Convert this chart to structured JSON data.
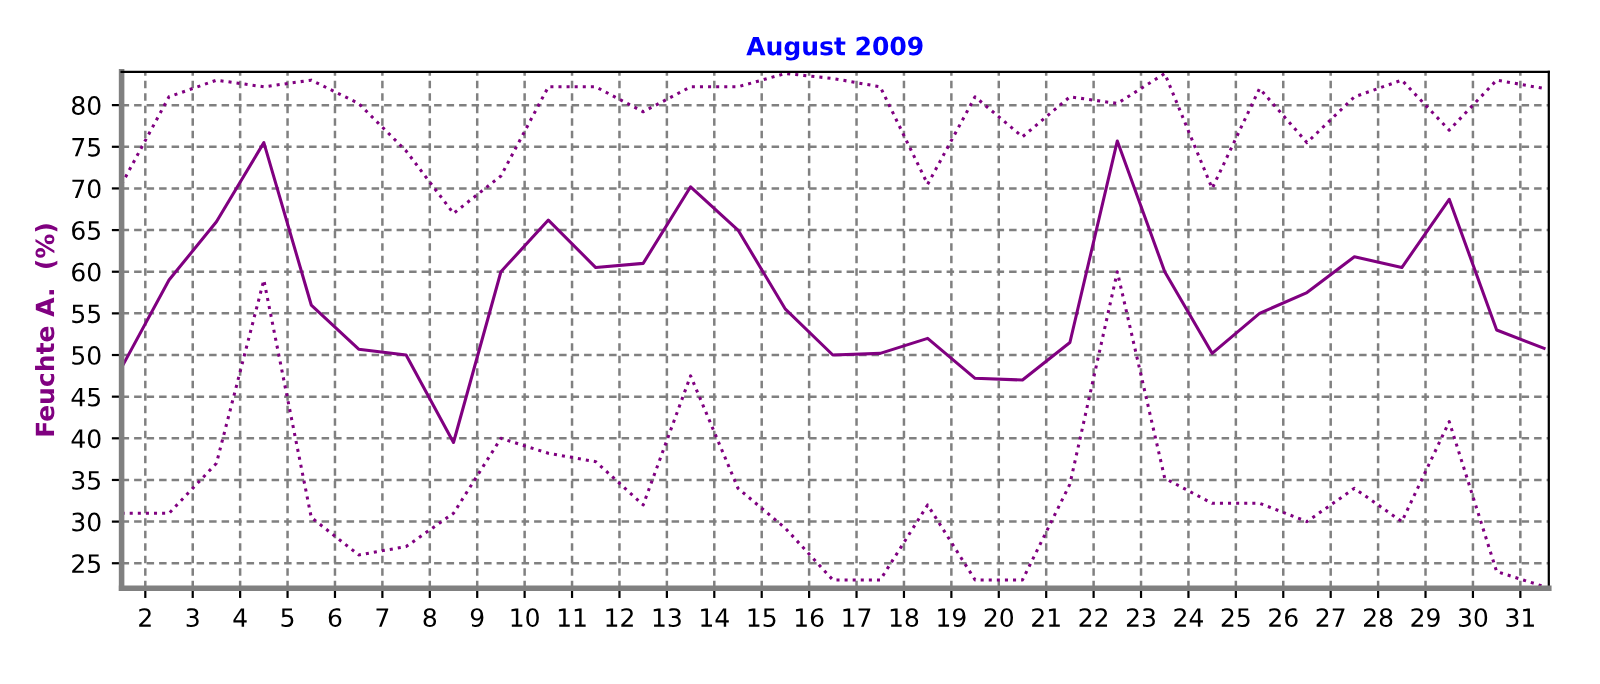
{
  "chart_data": {
    "type": "line",
    "title": "August 2009",
    "ylabel": "Feuchte A.  (%)",
    "x": [
      1.5,
      2.5,
      3.5,
      4.5,
      5.5,
      6.5,
      7.5,
      8.5,
      9.5,
      10.5,
      11.5,
      12.5,
      13.5,
      14.5,
      15.5,
      16.5,
      17.5,
      18.5,
      19.5,
      20.5,
      21.5,
      22.5,
      23.5,
      24.5,
      25.5,
      26.5,
      27.5,
      28.5,
      29.5,
      30.5,
      31.5
    ],
    "series": [
      {
        "color": "#800080",
        "line_style": "dotted",
        "values": [
          70.5,
          81,
          83,
          82.2,
          83,
          80.2,
          74.5,
          67,
          71.5,
          82.2,
          82.2,
          79.2,
          82.2,
          82.2,
          83.8,
          83.2,
          82.2,
          70.5,
          81,
          76.2,
          81,
          80.2,
          83.8,
          70,
          82,
          75.5,
          81,
          83,
          77,
          83,
          82
        ]
      },
      {
        "color": "#800080",
        "line_style": "solid",
        "values": [
          48.5,
          59,
          66,
          75.5,
          56,
          50.7,
          50,
          39.5,
          60,
          66.2,
          60.5,
          61,
          70.2,
          65,
          55.5,
          50,
          50.2,
          52,
          47.2,
          47,
          51.5,
          75.7,
          60,
          50.2,
          55,
          57.5,
          61.8,
          60.5,
          68.7,
          53,
          50.8
        ]
      },
      {
        "color": "#800080",
        "line_style": "dotted",
        "values": [
          31,
          31,
          37,
          59,
          30.5,
          26,
          27,
          31,
          40,
          38.2,
          37.2,
          32,
          47.5,
          34,
          29.2,
          23,
          23,
          32,
          23,
          23,
          34.5,
          60,
          35.2,
          32.2,
          32.2,
          30,
          34,
          30,
          42,
          24,
          22.2
        ]
      }
    ],
    "xlim": [
      1.5,
      31.6
    ],
    "xticks": [
      2,
      3,
      4,
      5,
      6,
      7,
      8,
      9,
      10,
      11,
      12,
      13,
      14,
      15,
      16,
      17,
      18,
      19,
      20,
      21,
      22,
      23,
      24,
      25,
      26,
      27,
      28,
      29,
      30,
      31
    ],
    "ylim": [
      22,
      84
    ],
    "yticks": [
      25,
      30,
      35,
      40,
      45,
      50,
      55,
      60,
      65,
      70,
      75,
      80
    ],
    "grid": true,
    "marker": "none",
    "legend": false
  }
}
